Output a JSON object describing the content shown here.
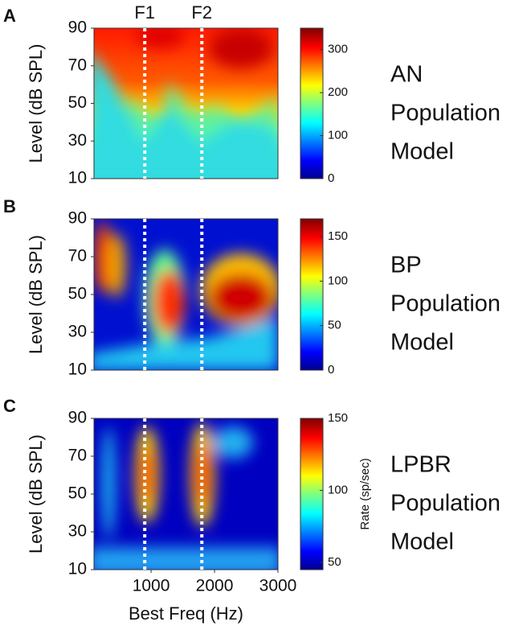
{
  "chart_data": [
    {
      "type": "heatmap",
      "panel_label": "A",
      "ylabel": "Level (dB SPL)",
      "xlim": [
        100,
        3000
      ],
      "ylim": [
        10,
        90
      ],
      "yticks": [
        10,
        30,
        50,
        70,
        90
      ],
      "formant_lines": [
        900,
        1800
      ],
      "formant_labels": [
        "F1",
        "F2"
      ],
      "clim": [
        0,
        350
      ],
      "cticks": [
        0,
        100,
        200,
        300
      ],
      "side_text": [
        "AN",
        "Population",
        "Model"
      ]
    },
    {
      "type": "heatmap",
      "panel_label": "B",
      "ylabel": "Level (dB SPL)",
      "xlim": [
        100,
        3000
      ],
      "ylim": [
        10,
        90
      ],
      "yticks": [
        10,
        30,
        50,
        70,
        90
      ],
      "formant_lines": [
        900,
        1800
      ],
      "clim": [
        0,
        170
      ],
      "cticks": [
        0,
        50,
        100,
        150
      ],
      "side_text": [
        "BP",
        "Population",
        "Model"
      ]
    },
    {
      "type": "heatmap",
      "panel_label": "C",
      "ylabel": "Level (dB SPL)",
      "xlabel": "Best Freq (Hz)",
      "xlim": [
        100,
        3000
      ],
      "xticks": [
        1000,
        2000,
        3000
      ],
      "ylim": [
        10,
        90
      ],
      "yticks": [
        10,
        30,
        50,
        70,
        90
      ],
      "formant_lines": [
        900,
        1800
      ],
      "clim": [
        45,
        150
      ],
      "cticks": [
        50,
        100,
        150
      ],
      "colorbar_label": "Rate (sp/sec)",
      "side_text": [
        "LPBR",
        "Population",
        "Model"
      ]
    }
  ]
}
